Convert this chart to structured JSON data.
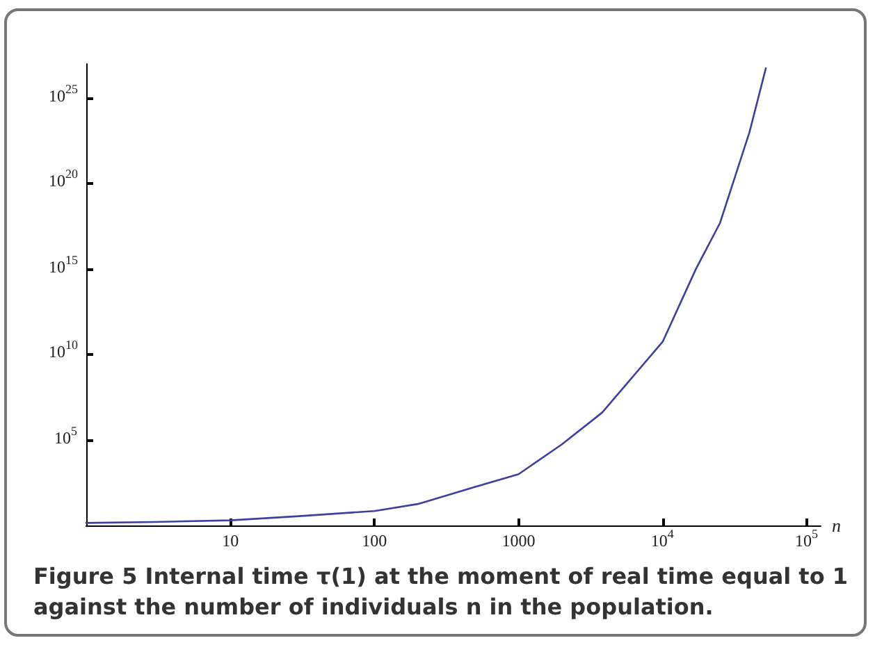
{
  "chart_data": {
    "type": "line",
    "xlabel": "n",
    "log": "xy",
    "grid": false,
    "marker": "none",
    "line_style": "solid",
    "x": [
      1,
      3,
      10,
      30,
      100,
      200,
      500,
      1000,
      2000,
      3800,
      10000,
      17000,
      25000,
      40000,
      52000
    ],
    "series": [
      {
        "color": "#3f3f9f",
        "values": [
          1.4,
          1.6,
          2,
          3.5,
          7,
          18,
          180,
          1000,
          56000,
          4000000,
          56000000000.0,
          1000000000000000.0,
          5e+17,
          1e+23,
          5.6e+26
        ]
      }
    ],
    "xlim": [
      1,
      125000
    ],
    "xticks": [
      10,
      100,
      1000,
      {
        "value": 10000,
        "label": "10$^{4}$"
      },
      {
        "value": 100000,
        "label": "10$^{5}$"
      }
    ],
    "ylim": [
      1,
      1e+27
    ],
    "yticks": [
      {
        "value": 100000,
        "label": "10$^{5}$"
      },
      {
        "value": 10000000000.0,
        "label": "10$^{10}$"
      },
      {
        "value": 1000000000000000.0,
        "label": "10$^{15}$"
      },
      {
        "value": 1e+20,
        "label": "10$^{20}$"
      },
      {
        "value": 1e+25,
        "label": "10$^{25}$"
      }
    ],
    "annotations": [
      "Figure 5 Internal time τ(1) at the moment of real time equal to 1 against the number of individuals n in the population."
    ]
  }
}
